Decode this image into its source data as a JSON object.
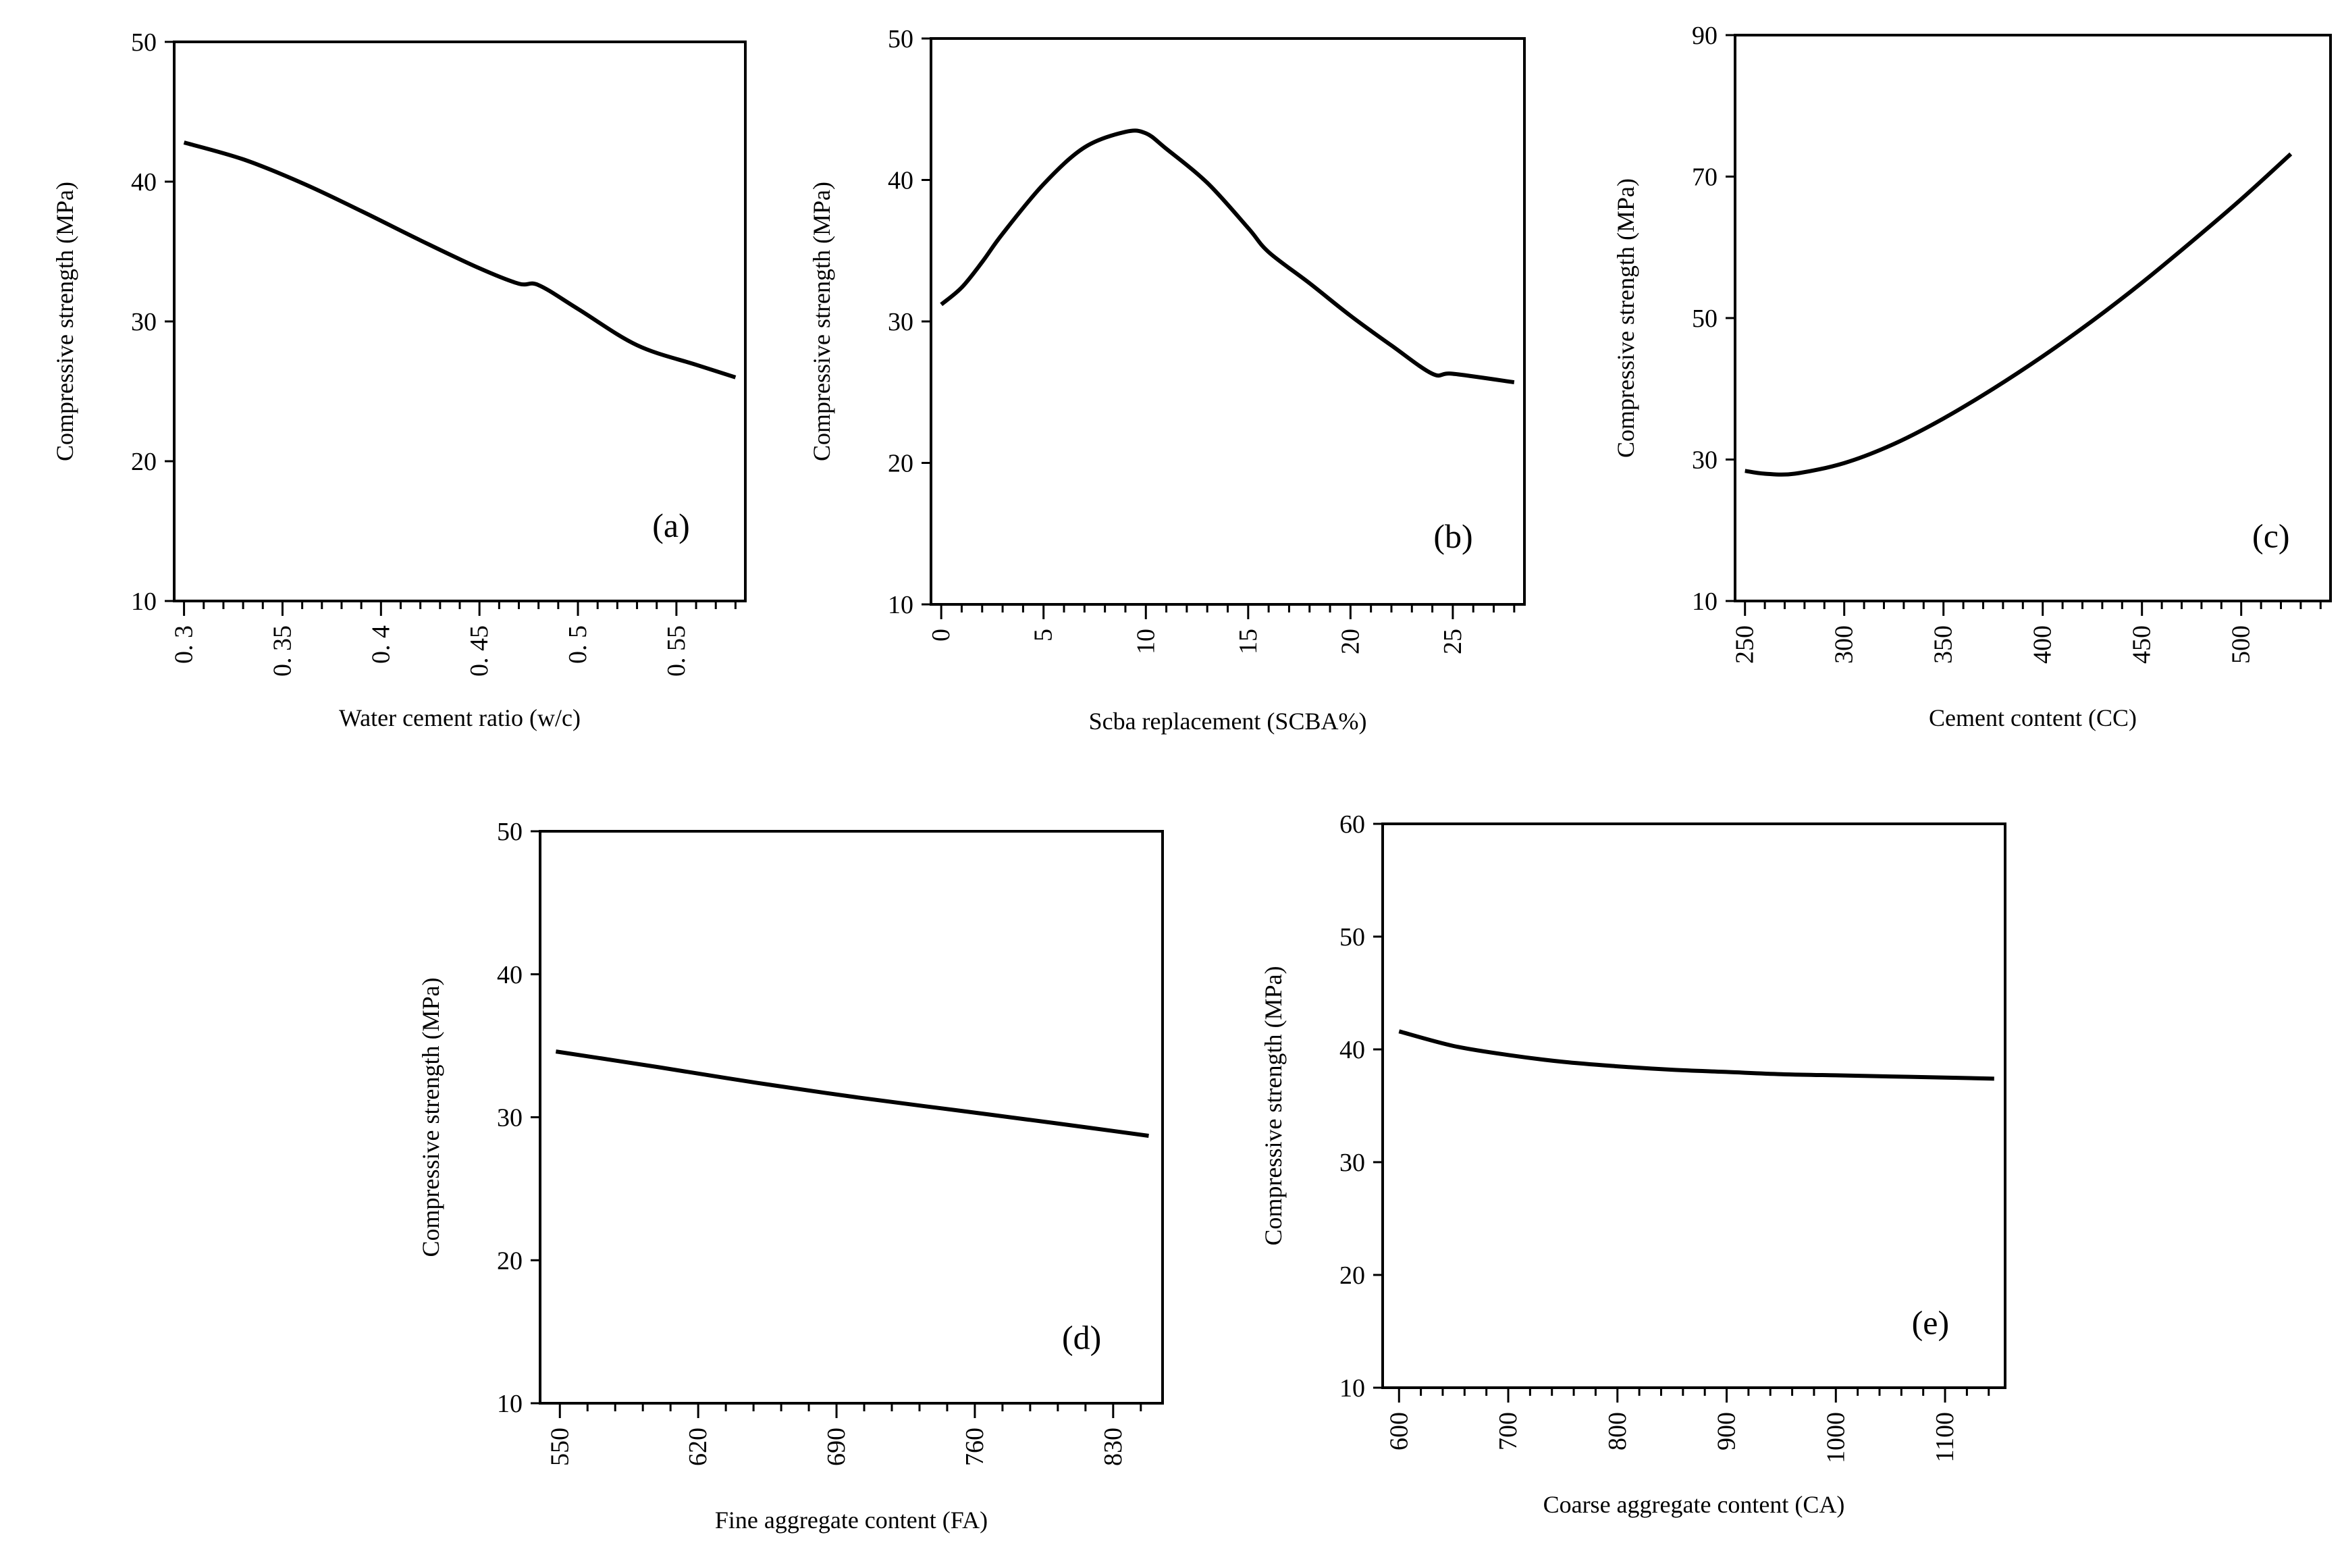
{
  "figure": {
    "background": "#ffffff",
    "line_color": "#000000"
  },
  "chart_data": [
    {
      "id": "a",
      "type": "line",
      "panel_label": "(a)",
      "xlabel": "Water cement ratio (w/c)",
      "ylabel": "Compressive strength (MPa)",
      "xlim": [
        0.295,
        0.585
      ],
      "ylim": [
        10,
        50
      ],
      "xticks": [
        0.3,
        0.35,
        0.4,
        0.45,
        0.5,
        0.55
      ],
      "xtick_labels": [
        "0. 3",
        "0. 35",
        "0. 4",
        "0. 45",
        "0. 5",
        "0. 55"
      ],
      "yticks": [
        10,
        20,
        30,
        40,
        50
      ],
      "ytick_labels": [
        "10",
        "20",
        "30",
        "40",
        "50"
      ],
      "x": [
        0.3,
        0.33,
        0.36,
        0.39,
        0.42,
        0.45,
        0.47,
        0.48,
        0.5,
        0.53,
        0.56,
        0.58
      ],
      "y": [
        42.8,
        41.6,
        39.9,
        37.9,
        35.8,
        33.8,
        32.7,
        32.6,
        30.9,
        28.3,
        26.9,
        26.0
      ]
    },
    {
      "id": "b",
      "type": "line",
      "panel_label": "(b)",
      "xlabel": "Scba replacement (SCBA%)",
      "ylabel": "Compressive strength (MPa)",
      "xlim": [
        -0.5,
        28.5
      ],
      "ylim": [
        10,
        50
      ],
      "xticks": [
        0,
        5,
        10,
        15,
        20,
        25
      ],
      "xtick_labels": [
        "0",
        "5",
        "10",
        "15",
        "20",
        "25"
      ],
      "yticks": [
        10,
        20,
        30,
        40,
        50
      ],
      "ytick_labels": [
        "10",
        "20",
        "30",
        "40",
        "50"
      ],
      "x": [
        0,
        1,
        2,
        3,
        5,
        7,
        9,
        10,
        11,
        13,
        15,
        16,
        18,
        20,
        22,
        24,
        25,
        28
      ],
      "y": [
        31.2,
        32.4,
        34.2,
        36.2,
        39.7,
        42.3,
        43.4,
        43.3,
        42.2,
        39.8,
        36.6,
        34.9,
        32.7,
        30.4,
        28.3,
        26.3,
        26.3,
        25.7
      ]
    },
    {
      "id": "c",
      "type": "line",
      "panel_label": "(c)",
      "xlabel": "Cement content (CC)",
      "ylabel": "Compressive strength (MPa)",
      "xlim": [
        245,
        545
      ],
      "ylim": [
        10,
        90
      ],
      "xticks": [
        250,
        300,
        350,
        400,
        450,
        500
      ],
      "xtick_labels": [
        "250",
        "300",
        "350",
        "400",
        "450",
        "500"
      ],
      "yticks": [
        10,
        30,
        50,
        70,
        90
      ],
      "ytick_labels": [
        "10",
        "30",
        "50",
        "70",
        "90"
      ],
      "x": [
        250,
        260,
        275,
        300,
        325,
        350,
        375,
        400,
        425,
        450,
        475,
        500,
        525
      ],
      "y": [
        28.4,
        28.0,
        28.0,
        29.5,
        32.2,
        35.8,
        40.0,
        44.6,
        49.6,
        55.0,
        60.8,
        66.8,
        73.2
      ]
    },
    {
      "id": "d",
      "type": "line",
      "panel_label": "(d)",
      "xlabel": "Fine aggregate content (FA)",
      "ylabel": "Compressive strength (MPa)",
      "xlim": [
        540,
        855
      ],
      "ylim": [
        10,
        50
      ],
      "xticks": [
        550,
        620,
        690,
        760,
        830
      ],
      "xtick_labels": [
        "550",
        "620",
        "690",
        "760",
        "830"
      ],
      "yticks": [
        10,
        20,
        30,
        40,
        50
      ],
      "ytick_labels": [
        "10",
        "20",
        "30",
        "40",
        "50"
      ],
      "x": [
        548,
        600,
        650,
        700,
        750,
        800,
        848
      ],
      "y": [
        34.6,
        33.5,
        32.4,
        31.4,
        30.5,
        29.6,
        28.7
      ]
    },
    {
      "id": "e",
      "type": "line",
      "panel_label": "(e)",
      "xlabel": "Coarse aggregate content (CA)",
      "ylabel": "Compressive strength (MPa)",
      "xlim": [
        585,
        1155
      ],
      "ylim": [
        10,
        60
      ],
      "xticks": [
        600,
        700,
        800,
        900,
        1000,
        1100
      ],
      "xtick_labels": [
        "600",
        "700",
        "800",
        "900",
        "1000",
        "1100"
      ],
      "yticks": [
        10,
        20,
        30,
        40,
        50,
        60
      ],
      "ytick_labels": [
        "10",
        "20",
        "30",
        "40",
        "50",
        "60"
      ],
      "x": [
        600,
        650,
        700,
        750,
        800,
        850,
        900,
        950,
        1000,
        1050,
        1100,
        1145
      ],
      "y": [
        41.6,
        40.3,
        39.5,
        38.9,
        38.5,
        38.2,
        38.0,
        37.8,
        37.7,
        37.6,
        37.5,
        37.4
      ]
    }
  ]
}
